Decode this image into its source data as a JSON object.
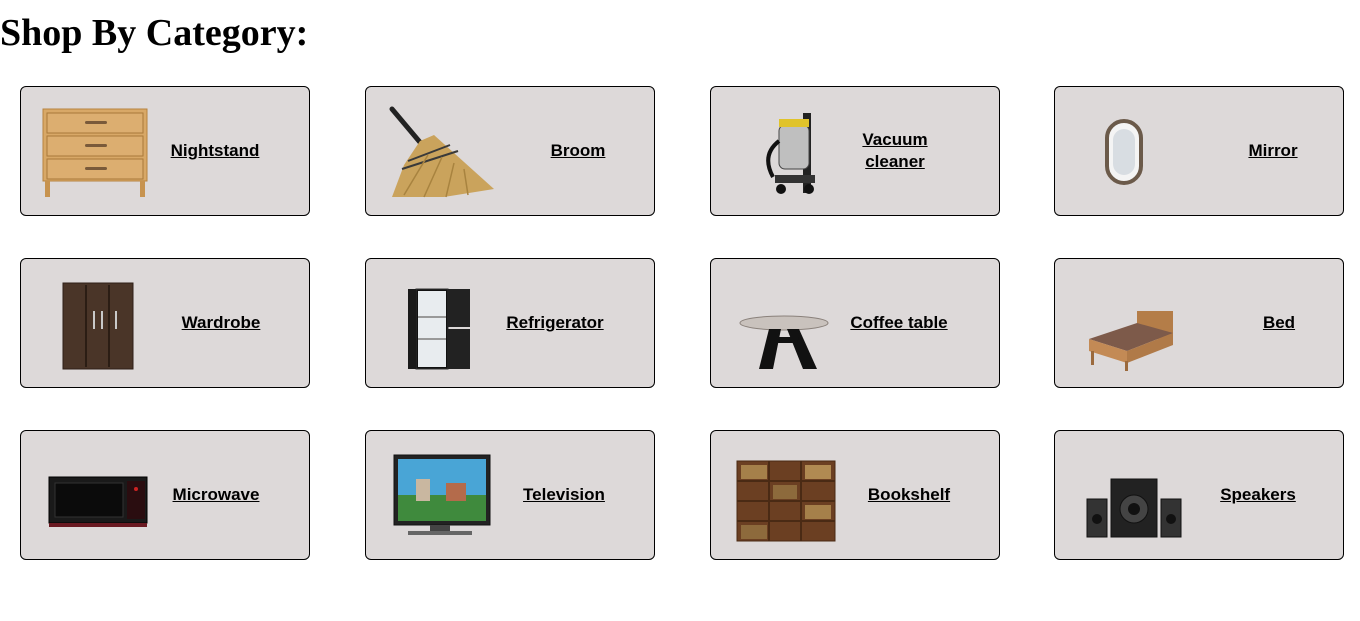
{
  "page": {
    "title": "Shop By Category:"
  },
  "categories": [
    {
      "label": "Nightstand",
      "icon": "nightstand-icon"
    },
    {
      "label": "Broom",
      "icon": "broom-icon"
    },
    {
      "label": "Vacuum cleaner",
      "icon": "vacuum-cleaner-icon"
    },
    {
      "label": "Mirror",
      "icon": "mirror-icon"
    },
    {
      "label": "Wardrobe",
      "icon": "wardrobe-icon"
    },
    {
      "label": "Refrigerator",
      "icon": "refrigerator-icon"
    },
    {
      "label": "Coffee table",
      "icon": "coffee-table-icon"
    },
    {
      "label": "Bed",
      "icon": "bed-icon"
    },
    {
      "label": "Microwave",
      "icon": "microwave-icon"
    },
    {
      "label": "Television",
      "icon": "television-icon"
    },
    {
      "label": "Bookshelf",
      "icon": "bookshelf-icon"
    },
    {
      "label": "Speakers",
      "icon": "speakers-icon"
    }
  ],
  "colors": {
    "card_bg": "#ddd9d9",
    "card_border": "#000000",
    "text": "#000000"
  }
}
